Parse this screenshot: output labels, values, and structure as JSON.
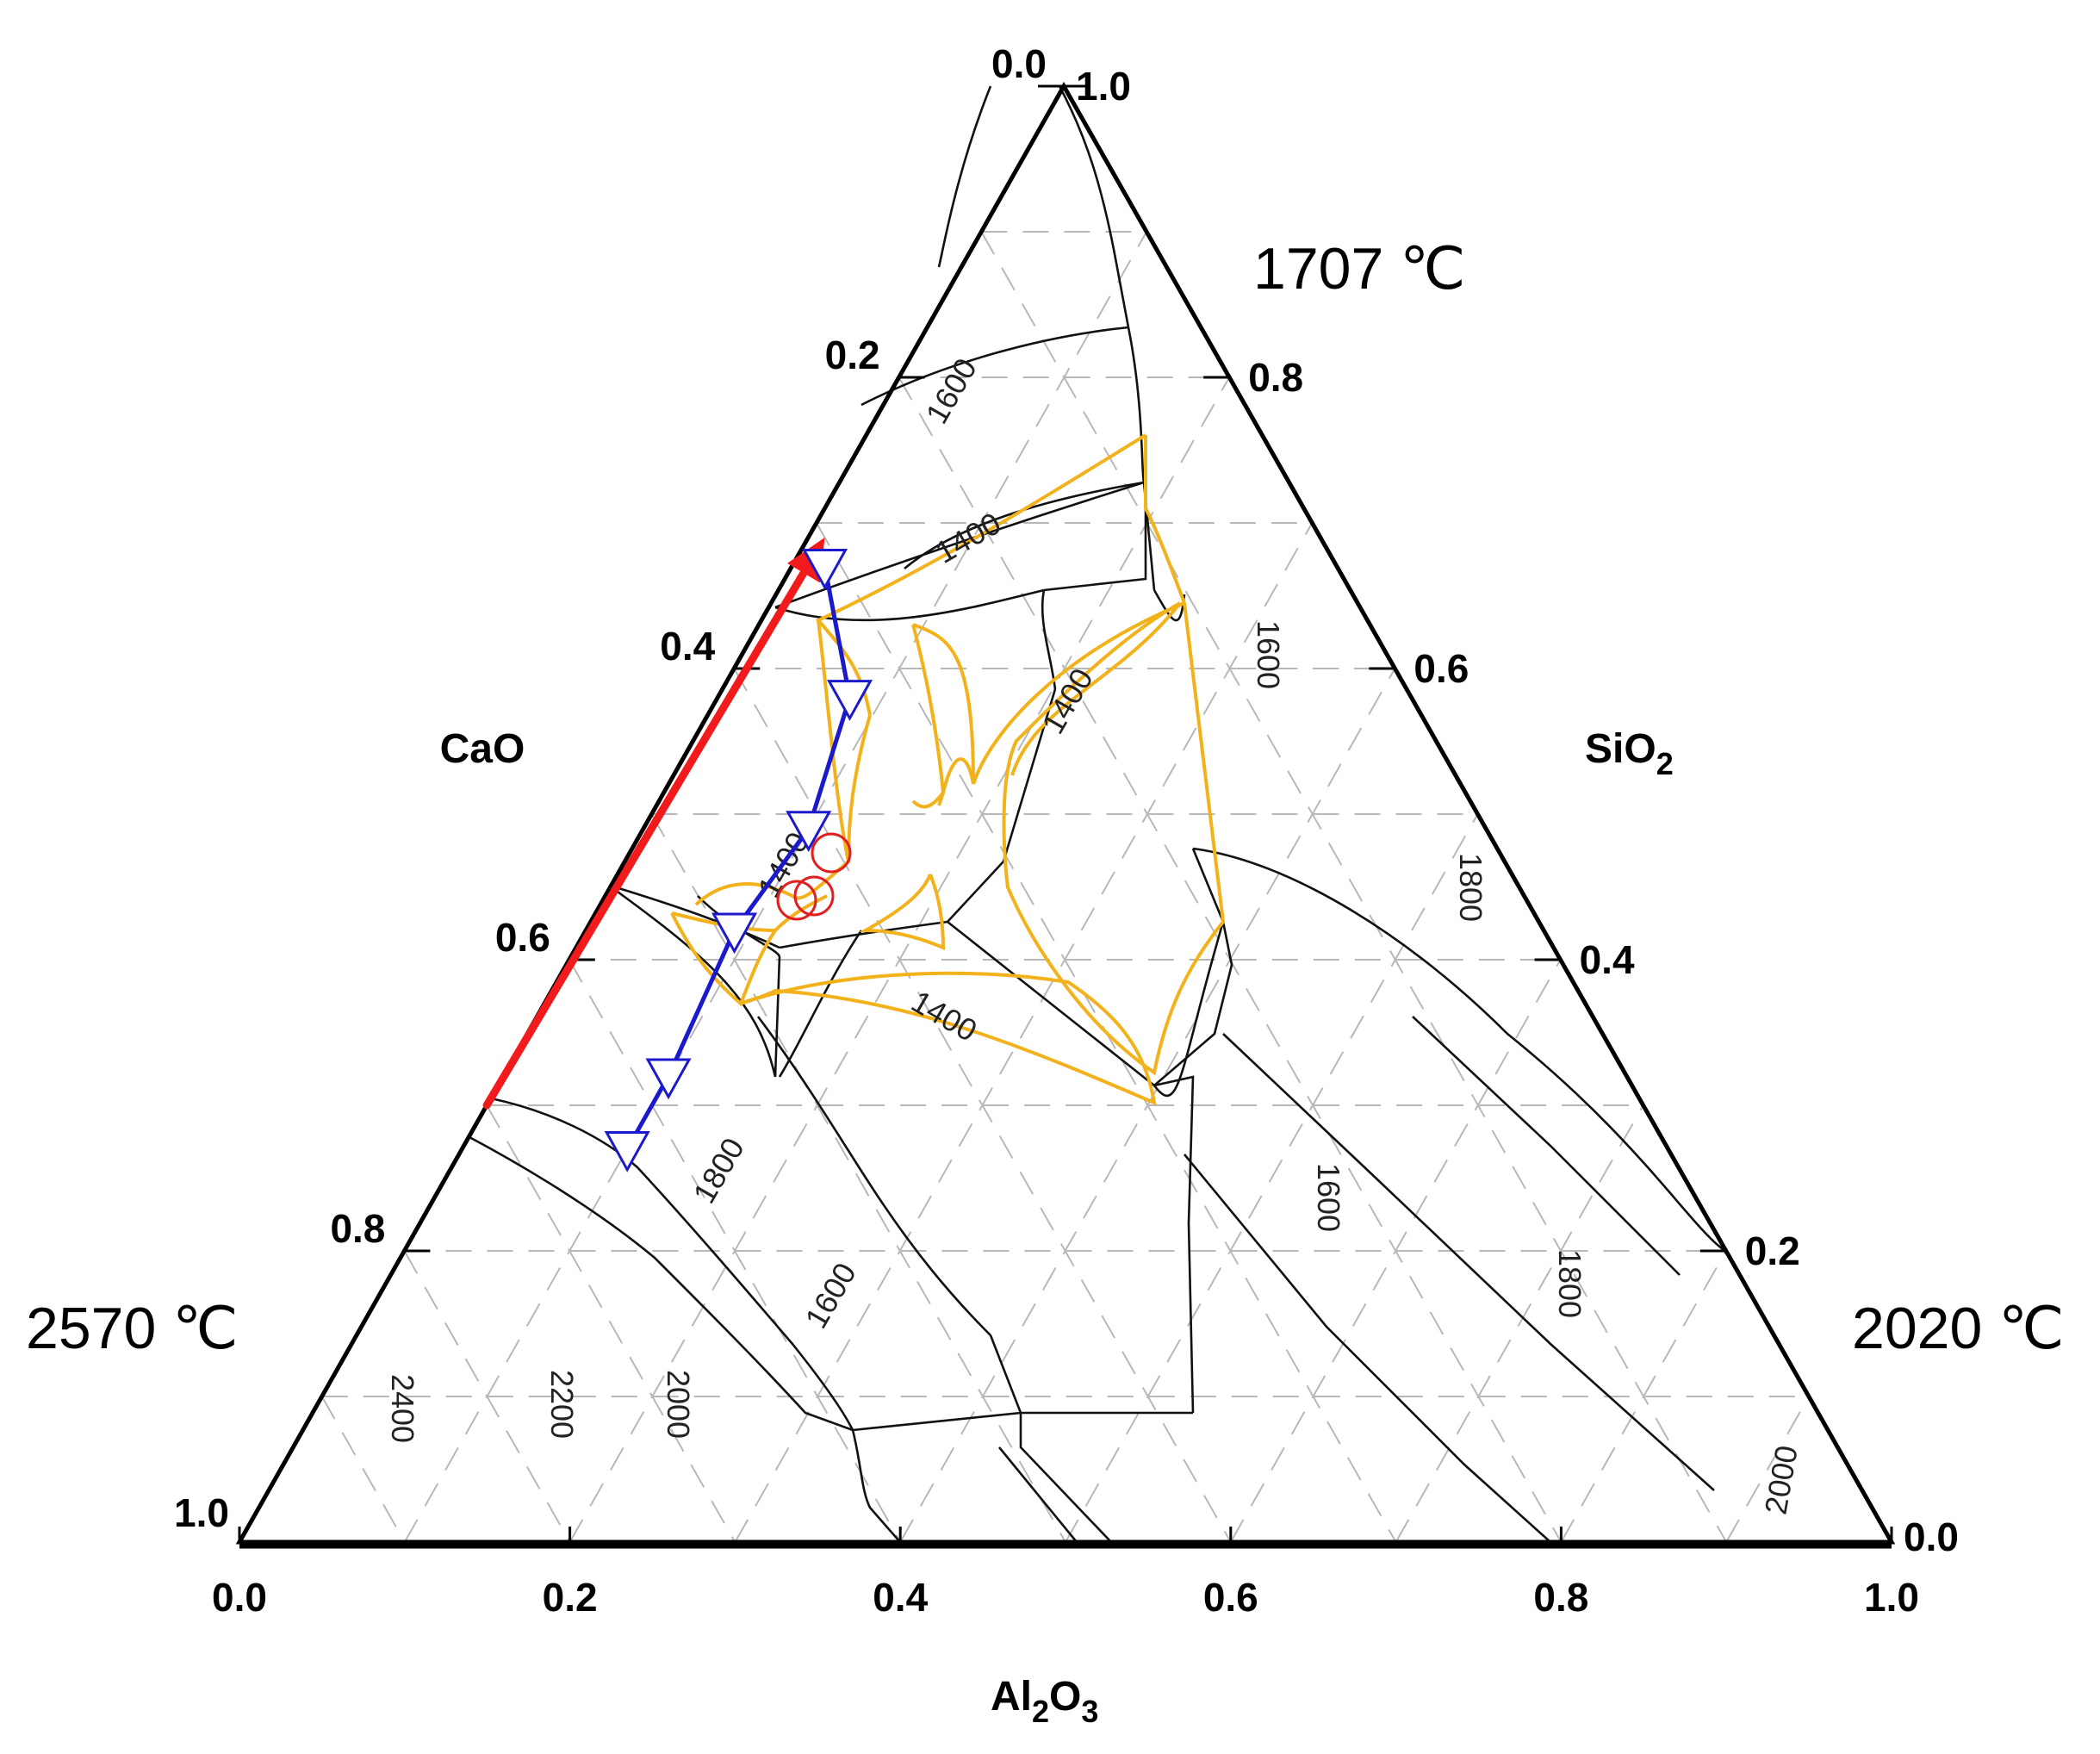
{
  "chart_data": {
    "type": "ternary",
    "title": "",
    "components": {
      "left": {
        "name": "CaO",
        "melting_point": "2570 ℃"
      },
      "top": {
        "name": "SiO2",
        "melting_point": "1707 ℃"
      },
      "right": {
        "name": "Al2O3",
        "melting_point": "2020 ℃"
      }
    },
    "axes": {
      "bottom": {
        "label": "Al2O3",
        "ticks": [
          "0.0",
          "0.2",
          "0.4",
          "0.6",
          "0.8",
          "1.0"
        ]
      },
      "left": {
        "label": "CaO",
        "ticks": [
          "0.0",
          "0.2",
          "0.4",
          "0.6",
          "0.8",
          "1.0"
        ]
      },
      "right": {
        "label": "SiO2",
        "ticks": [
          "1.0",
          "0.8",
          "0.6",
          "0.4",
          "0.2",
          "0.0"
        ]
      }
    },
    "grid": true,
    "isotherm_labels": [
      "1600",
      "1400",
      "1400",
      "1600",
      "1400",
      "1800",
      "1400",
      "1800",
      "1600",
      "1600",
      "1800",
      "2400",
      "2200",
      "2000",
      "2000"
    ],
    "composition_path": {
      "marker": "triangle-down",
      "color": "#1a1acc",
      "points_cao_sio2_al2o3": [
        [
          0.31,
          0.67,
          0.02
        ],
        [
          0.34,
          0.58,
          0.08
        ],
        [
          0.41,
          0.49,
          0.1
        ],
        [
          0.49,
          0.42,
          0.09
        ],
        [
          0.58,
          0.32,
          0.1
        ],
        [
          0.63,
          0.27,
          0.1
        ]
      ]
    },
    "trend_arrow": {
      "color": "#f21a1a",
      "from_cao_sio2_al2o3": [
        0.7,
        0.3,
        0.0
      ],
      "to_cao_sio2_al2o3": [
        0.3,
        0.69,
        0.01
      ]
    },
    "red_circle_markers": 3
  }
}
